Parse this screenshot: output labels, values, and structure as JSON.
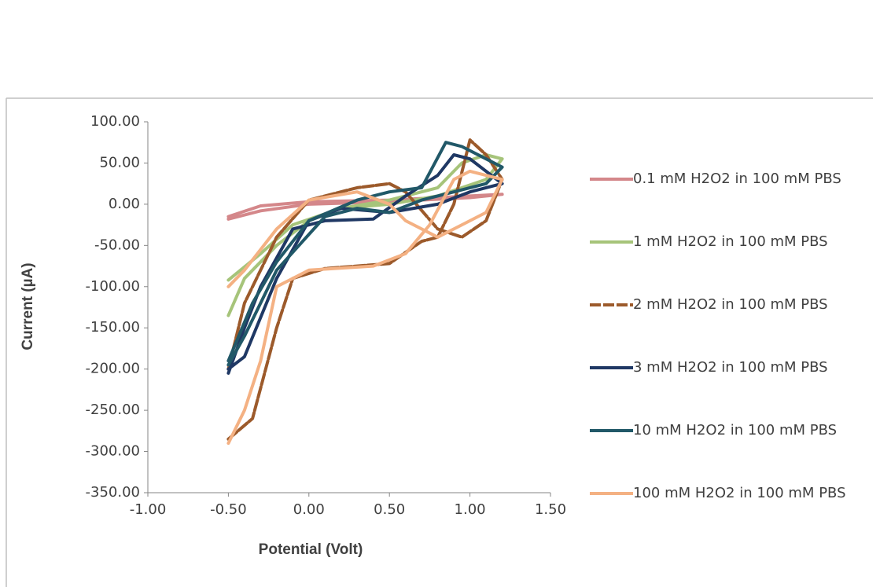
{
  "chart_data": {
    "type": "line",
    "x_label": "Potential (Volt)",
    "y_label": "Current (µA)",
    "xlim": [
      -1,
      1.5
    ],
    "ylim": [
      -350,
      100
    ],
    "xticks": [
      {
        "value": -1,
        "label": "-1.00"
      },
      {
        "value": -0.5,
        "label": "-0.50"
      },
      {
        "value": 0,
        "label": "0.00"
      },
      {
        "value": 0.5,
        "label": "0.50"
      },
      {
        "value": 1,
        "label": "1.00"
      },
      {
        "value": 1.5,
        "label": "1.50"
      }
    ],
    "yticks": [
      {
        "value": 100,
        "label": "100.00"
      },
      {
        "value": 50,
        "label": "50.00"
      },
      {
        "value": 0,
        "label": "0.00"
      },
      {
        "value": -50,
        "label": "-50.00"
      },
      {
        "value": -100,
        "label": "-100.00"
      },
      {
        "value": -150,
        "label": "-150.00"
      },
      {
        "value": -200,
        "label": "-200.00"
      },
      {
        "value": -250,
        "label": "-250.00"
      },
      {
        "value": -300,
        "label": "-300.00"
      },
      {
        "value": -350,
        "label": "-350.00"
      }
    ],
    "legend": "right",
    "series": [
      {
        "name": "0.1 mM H2O2 in 100 mM PBS",
        "color": "#d4878a",
        "x": [
          -0.5,
          -0.3,
          0,
          0.5,
          1.0,
          1.2,
          1.0,
          0.5,
          0,
          -0.3,
          -0.5
        ],
        "values": [
          -18,
          -8,
          0,
          3,
          8,
          12,
          10,
          5,
          3,
          -2,
          -15
        ]
      },
      {
        "name": "1 mM H2O2 in 100 mM PBS",
        "color": "#a6c47a",
        "x": [
          -0.5,
          -0.3,
          -0.1,
          0.2,
          0.5,
          0.8,
          0.95,
          1.1,
          1.2,
          1.1,
          0.8,
          0.5,
          0.2,
          0,
          -0.2,
          -0.4,
          -0.5
        ],
        "values": [
          -92,
          -60,
          -25,
          -5,
          5,
          20,
          50,
          60,
          55,
          30,
          10,
          0,
          -5,
          -20,
          -50,
          -90,
          -135
        ]
      },
      {
        "name": "2 mM H2O2 in 100 mM PBS",
        "color": "#9c5a2b",
        "x": [
          -0.5,
          -0.35,
          -0.2,
          -0.1,
          0.1,
          0.5,
          0.7,
          0.8,
          0.9,
          1.0,
          1.1,
          1.2,
          1.1,
          0.95,
          0.8,
          0.6,
          0.5,
          0.3,
          0,
          -0.2,
          -0.4,
          -0.5
        ],
        "values": [
          -285,
          -260,
          -150,
          -90,
          -78,
          -72,
          -45,
          -40,
          0,
          78,
          60,
          30,
          -20,
          -40,
          -30,
          15,
          25,
          20,
          5,
          -40,
          -120,
          -200
        ]
      },
      {
        "name": "3 mM H2O2 in 100 mM PBS",
        "color": "#1f3864",
        "x": [
          -0.5,
          -0.4,
          -0.3,
          -0.1,
          0.1,
          0.4,
          0.6,
          0.8,
          0.9,
          1.0,
          1.2,
          1.0,
          0.8,
          0.5,
          0.2,
          0,
          -0.2,
          -0.4,
          -0.5
        ],
        "values": [
          -205,
          -150,
          -100,
          -30,
          -20,
          -18,
          10,
          35,
          60,
          55,
          25,
          15,
          0,
          -10,
          -5,
          -20,
          -90,
          -185,
          -200
        ]
      },
      {
        "name": "10 mM H2O2 in 100 mM PBS",
        "color": "#215868",
        "x": [
          -0.5,
          -0.35,
          -0.2,
          0,
          0.3,
          0.5,
          0.7,
          0.85,
          0.95,
          1.1,
          1.2,
          1.1,
          0.9,
          0.7,
          0.5,
          0.3,
          0.1,
          -0.2,
          -0.4,
          -0.5
        ],
        "values": [
          -190,
          -120,
          -70,
          -20,
          5,
          15,
          20,
          75,
          70,
          55,
          45,
          25,
          15,
          5,
          -10,
          -5,
          -15,
          -80,
          -160,
          -195
        ]
      },
      {
        "name": "100 mM H2O2 in 100 mM PBS",
        "color": "#f4b183",
        "x": [
          -0.5,
          -0.4,
          -0.3,
          -0.2,
          0,
          0.4,
          0.6,
          0.75,
          0.9,
          1.0,
          1.2,
          1.1,
          0.95,
          0.8,
          0.6,
          0.5,
          0.3,
          0,
          -0.2,
          -0.4,
          -0.5
        ],
        "values": [
          -290,
          -250,
          -190,
          -100,
          -80,
          -75,
          -60,
          -25,
          30,
          40,
          30,
          -10,
          -25,
          -40,
          -20,
          0,
          15,
          5,
          -30,
          -80,
          -100
        ]
      }
    ]
  }
}
